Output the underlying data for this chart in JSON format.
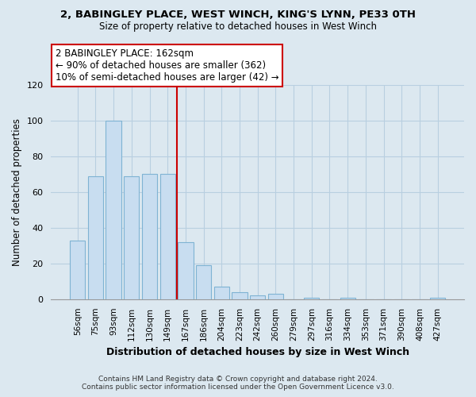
{
  "title": "2, BABINGLEY PLACE, WEST WINCH, KING'S LYNN, PE33 0TH",
  "subtitle": "Size of property relative to detached houses in West Winch",
  "xlabel": "Distribution of detached houses by size in West Winch",
  "ylabel": "Number of detached properties",
  "bar_color": "#c8ddf0",
  "bar_edge_color": "#7fb3d3",
  "background_color": "#dce8f0",
  "grid_color": "#b8cfe0",
  "categories": [
    "56sqm",
    "75sqm",
    "93sqm",
    "112sqm",
    "130sqm",
    "149sqm",
    "167sqm",
    "186sqm",
    "204sqm",
    "223sqm",
    "242sqm",
    "260sqm",
    "279sqm",
    "297sqm",
    "316sqm",
    "334sqm",
    "353sqm",
    "371sqm",
    "390sqm",
    "408sqm",
    "427sqm"
  ],
  "values": [
    33,
    69,
    100,
    69,
    70,
    70,
    32,
    19,
    7,
    4,
    2,
    3,
    0,
    1,
    0,
    1,
    0,
    0,
    0,
    0,
    1
  ],
  "ylim": [
    0,
    120
  ],
  "yticks": [
    0,
    20,
    40,
    60,
    80,
    100,
    120
  ],
  "vline_x_idx": 6,
  "vline_color": "#cc0000",
  "annotation_title": "2 BABINGLEY PLACE: 162sqm",
  "annotation_line1": "← 90% of detached houses are smaller (362)",
  "annotation_line2": "10% of semi-detached houses are larger (42) →",
  "footer1": "Contains HM Land Registry data © Crown copyright and database right 2024.",
  "footer2": "Contains public sector information licensed under the Open Government Licence v3.0."
}
